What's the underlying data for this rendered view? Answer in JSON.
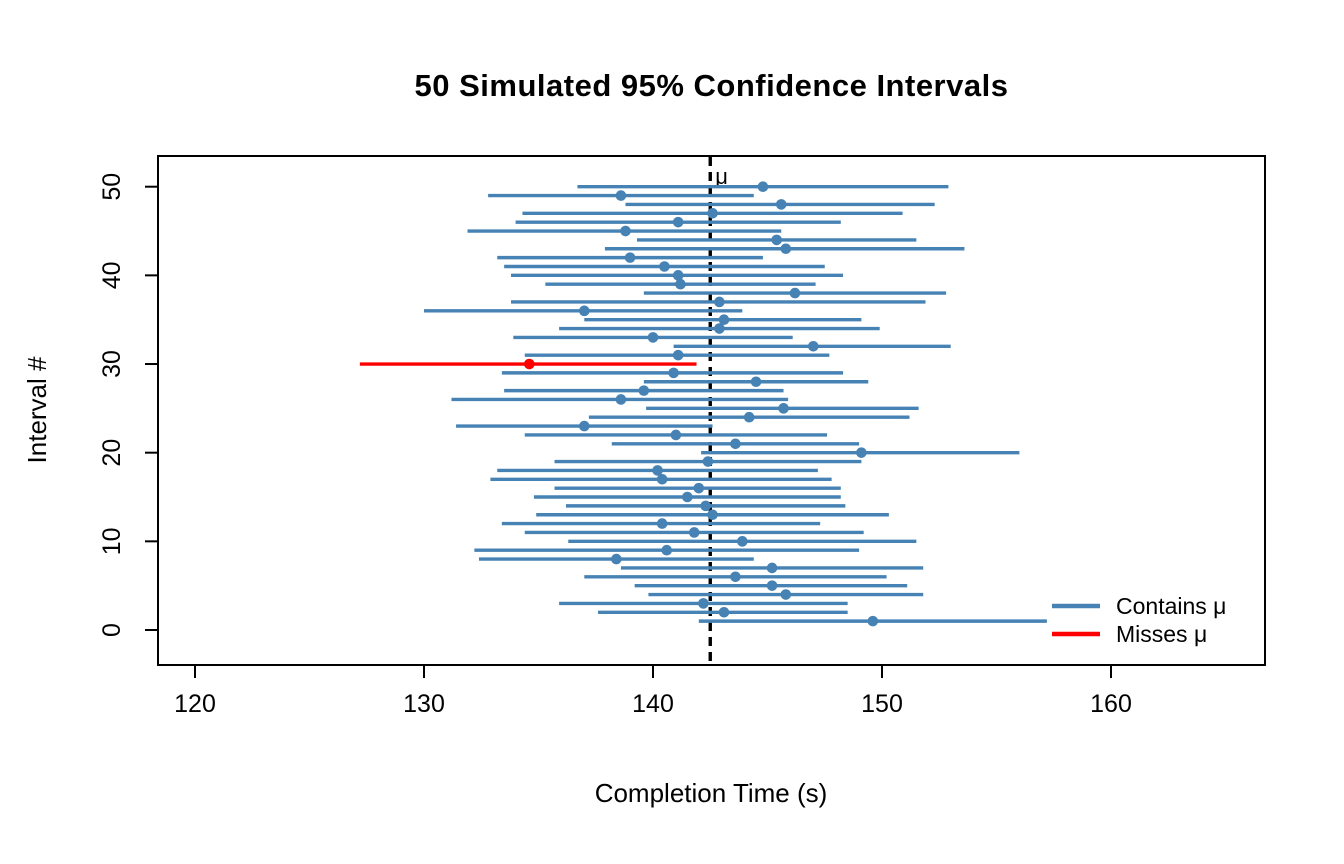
{
  "chart_data": {
    "type": "interval",
    "title": "50 Simulated 95% Confidence Intervals",
    "xlabel": "Completion Time (s)",
    "ylabel": "Interval #",
    "x_ticks": [
      120,
      130,
      140,
      150,
      160
    ],
    "y_ticks": [
      0,
      10,
      20,
      30,
      40,
      50
    ],
    "xlim": [
      118.4,
      166.7
    ],
    "ylim": [
      -4,
      53.5
    ],
    "grid": false,
    "mu": 142.5,
    "mu_label": "μ",
    "mu_line_style": "dashed-vertical-black",
    "legend_position": "bottom-right-inside",
    "legend": [
      {
        "label": "Contains μ",
        "color": "#4682B4"
      },
      {
        "label": "Misses μ",
        "color": "#FF0000"
      }
    ],
    "colors": {
      "contains": "#4682B4",
      "misses": "#FF0000",
      "mu_line": "#000000"
    },
    "intervals": [
      {
        "id": 1,
        "lower": 142.0,
        "upper": 157.2,
        "mean": 149.6,
        "contains_mu": true
      },
      {
        "id": 2,
        "lower": 137.6,
        "upper": 148.5,
        "mean": 143.1,
        "contains_mu": true
      },
      {
        "id": 3,
        "lower": 135.9,
        "upper": 148.5,
        "mean": 142.2,
        "contains_mu": true
      },
      {
        "id": 4,
        "lower": 139.8,
        "upper": 151.8,
        "mean": 145.8,
        "contains_mu": true
      },
      {
        "id": 5,
        "lower": 139.2,
        "upper": 151.1,
        "mean": 145.2,
        "contains_mu": true
      },
      {
        "id": 6,
        "lower": 137.0,
        "upper": 150.2,
        "mean": 143.6,
        "contains_mu": true
      },
      {
        "id": 7,
        "lower": 138.6,
        "upper": 151.8,
        "mean": 145.2,
        "contains_mu": true
      },
      {
        "id": 8,
        "lower": 132.4,
        "upper": 144.4,
        "mean": 138.4,
        "contains_mu": true
      },
      {
        "id": 9,
        "lower": 132.2,
        "upper": 149.0,
        "mean": 140.6,
        "contains_mu": true
      },
      {
        "id": 10,
        "lower": 136.3,
        "upper": 151.5,
        "mean": 143.9,
        "contains_mu": true
      },
      {
        "id": 11,
        "lower": 134.4,
        "upper": 149.2,
        "mean": 141.8,
        "contains_mu": true
      },
      {
        "id": 12,
        "lower": 133.4,
        "upper": 147.3,
        "mean": 140.4,
        "contains_mu": true
      },
      {
        "id": 13,
        "lower": 134.9,
        "upper": 150.3,
        "mean": 142.6,
        "contains_mu": true
      },
      {
        "id": 14,
        "lower": 136.2,
        "upper": 148.4,
        "mean": 142.3,
        "contains_mu": true
      },
      {
        "id": 15,
        "lower": 134.8,
        "upper": 148.2,
        "mean": 141.5,
        "contains_mu": true
      },
      {
        "id": 16,
        "lower": 135.7,
        "upper": 148.2,
        "mean": 142.0,
        "contains_mu": true
      },
      {
        "id": 17,
        "lower": 132.9,
        "upper": 147.8,
        "mean": 140.4,
        "contains_mu": true
      },
      {
        "id": 18,
        "lower": 133.2,
        "upper": 147.2,
        "mean": 140.2,
        "contains_mu": true
      },
      {
        "id": 19,
        "lower": 135.7,
        "upper": 149.1,
        "mean": 142.4,
        "contains_mu": true
      },
      {
        "id": 20,
        "lower": 142.1,
        "upper": 156.0,
        "mean": 149.1,
        "contains_mu": true
      },
      {
        "id": 21,
        "lower": 138.2,
        "upper": 149.0,
        "mean": 143.6,
        "contains_mu": true
      },
      {
        "id": 22,
        "lower": 134.4,
        "upper": 147.6,
        "mean": 141.0,
        "contains_mu": true
      },
      {
        "id": 23,
        "lower": 131.4,
        "upper": 142.6,
        "mean": 137.0,
        "contains_mu": true
      },
      {
        "id": 24,
        "lower": 137.2,
        "upper": 151.2,
        "mean": 144.2,
        "contains_mu": true
      },
      {
        "id": 25,
        "lower": 139.7,
        "upper": 151.6,
        "mean": 145.7,
        "contains_mu": true
      },
      {
        "id": 26,
        "lower": 131.2,
        "upper": 145.9,
        "mean": 138.6,
        "contains_mu": true
      },
      {
        "id": 27,
        "lower": 133.5,
        "upper": 145.7,
        "mean": 139.6,
        "contains_mu": true
      },
      {
        "id": 28,
        "lower": 139.6,
        "upper": 149.4,
        "mean": 144.5,
        "contains_mu": true
      },
      {
        "id": 29,
        "lower": 133.4,
        "upper": 148.3,
        "mean": 140.9,
        "contains_mu": true
      },
      {
        "id": 30,
        "lower": 127.2,
        "upper": 141.9,
        "mean": 134.6,
        "contains_mu": false
      },
      {
        "id": 31,
        "lower": 134.4,
        "upper": 147.7,
        "mean": 141.1,
        "contains_mu": true
      },
      {
        "id": 32,
        "lower": 140.9,
        "upper": 153.0,
        "mean": 147.0,
        "contains_mu": true
      },
      {
        "id": 33,
        "lower": 133.9,
        "upper": 146.1,
        "mean": 140.0,
        "contains_mu": true
      },
      {
        "id": 34,
        "lower": 135.9,
        "upper": 149.9,
        "mean": 142.9,
        "contains_mu": true
      },
      {
        "id": 35,
        "lower": 137.0,
        "upper": 149.1,
        "mean": 143.1,
        "contains_mu": true
      },
      {
        "id": 36,
        "lower": 130.0,
        "upper": 143.9,
        "mean": 137.0,
        "contains_mu": true
      },
      {
        "id": 37,
        "lower": 133.8,
        "upper": 151.9,
        "mean": 142.9,
        "contains_mu": true
      },
      {
        "id": 38,
        "lower": 139.6,
        "upper": 152.8,
        "mean": 146.2,
        "contains_mu": true
      },
      {
        "id": 39,
        "lower": 135.3,
        "upper": 147.1,
        "mean": 141.2,
        "contains_mu": true
      },
      {
        "id": 40,
        "lower": 133.8,
        "upper": 148.3,
        "mean": 141.1,
        "contains_mu": true
      },
      {
        "id": 41,
        "lower": 133.5,
        "upper": 147.5,
        "mean": 140.5,
        "contains_mu": true
      },
      {
        "id": 42,
        "lower": 133.2,
        "upper": 144.8,
        "mean": 139.0,
        "contains_mu": true
      },
      {
        "id": 43,
        "lower": 137.9,
        "upper": 153.6,
        "mean": 145.8,
        "contains_mu": true
      },
      {
        "id": 44,
        "lower": 139.3,
        "upper": 151.5,
        "mean": 145.4,
        "contains_mu": true
      },
      {
        "id": 45,
        "lower": 131.9,
        "upper": 145.6,
        "mean": 138.8,
        "contains_mu": true
      },
      {
        "id": 46,
        "lower": 134.0,
        "upper": 148.2,
        "mean": 141.1,
        "contains_mu": true
      },
      {
        "id": 47,
        "lower": 134.3,
        "upper": 150.9,
        "mean": 142.6,
        "contains_mu": true
      },
      {
        "id": 48,
        "lower": 138.8,
        "upper": 152.3,
        "mean": 145.6,
        "contains_mu": true
      },
      {
        "id": 49,
        "lower": 132.8,
        "upper": 144.4,
        "mean": 138.6,
        "contains_mu": true
      },
      {
        "id": 50,
        "lower": 136.7,
        "upper": 152.9,
        "mean": 144.8,
        "contains_mu": true
      }
    ]
  }
}
